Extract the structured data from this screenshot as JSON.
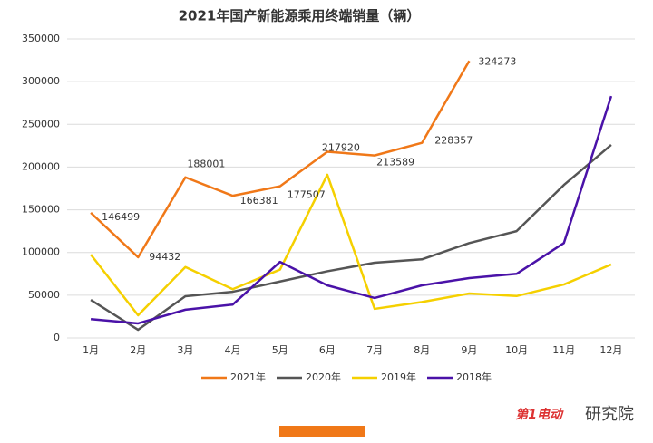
{
  "chart_data": {
    "type": "line",
    "title": "2021年国产新能源乘用终端销量（辆）",
    "categories": [
      "1月",
      "2月",
      "3月",
      "4月",
      "5月",
      "6月",
      "7月",
      "8月",
      "9月",
      "10月",
      "11月",
      "12月"
    ],
    "series": [
      {
        "name": "2021年",
        "color": "#f07818",
        "values": [
          146499,
          94432,
          188001,
          166381,
          177507,
          217920,
          213589,
          228357,
          324273,
          null,
          null,
          null
        ]
      },
      {
        "name": "2020年",
        "color": "#555555",
        "values": [
          44500,
          9500,
          48800,
          54000,
          66000,
          78000,
          88000,
          92000,
          111000,
          125000,
          179000,
          226000
        ]
      },
      {
        "name": "2019年",
        "color": "#f5d000",
        "values": [
          97600,
          26500,
          83000,
          57000,
          80000,
          191000,
          34000,
          42000,
          52000,
          49000,
          62500,
          86000
        ]
      },
      {
        "name": "2018年",
        "color": "#4a12a8",
        "values": [
          22000,
          17000,
          33000,
          39000,
          89000,
          61500,
          46700,
          61500,
          70000,
          75000,
          111000,
          283000
        ]
      }
    ],
    "data_labels_series": 0,
    "ylim": [
      0,
      350000
    ],
    "yticks": [
      0,
      50000,
      100000,
      150000,
      200000,
      250000,
      300000,
      350000
    ],
    "grid": true,
    "legend": "bottom",
    "annotations": [
      "第1电动",
      "研究院"
    ]
  }
}
